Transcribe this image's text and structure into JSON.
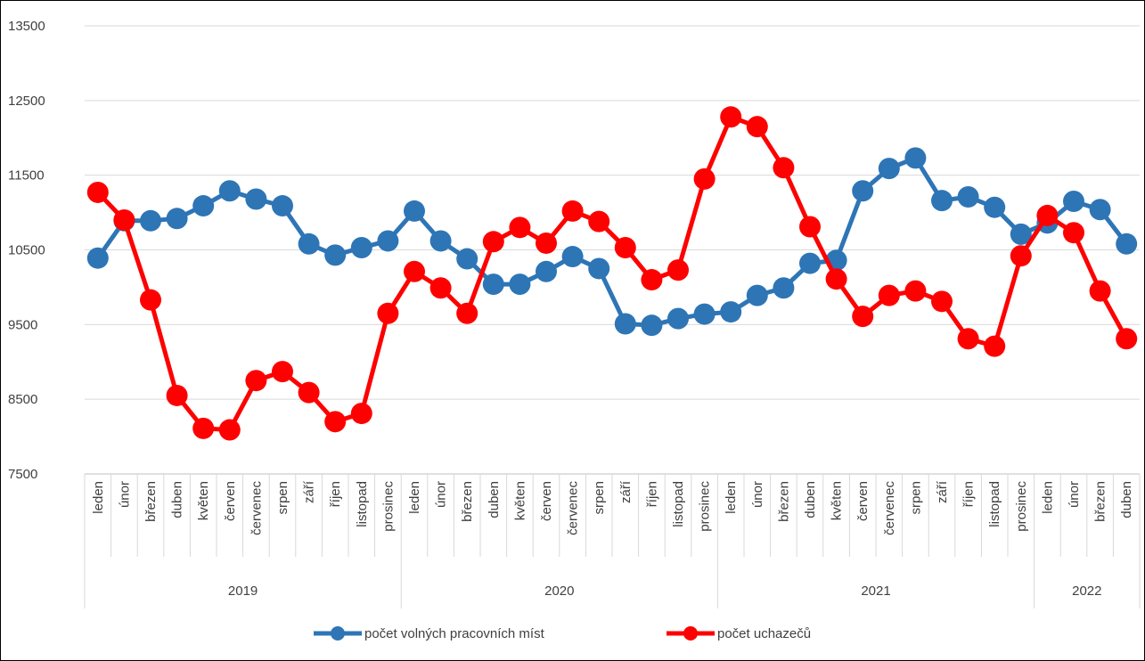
{
  "chart_data": {
    "type": "line",
    "ylim": [
      7500,
      13500
    ],
    "yticks": [
      7500,
      8500,
      9500,
      10500,
      11500,
      12500,
      13500
    ],
    "grid": "horizontal",
    "legend_position": "bottom",
    "categories": [
      "leden",
      "únor",
      "březen",
      "duben",
      "květen",
      "červen",
      "červenec",
      "srpen",
      "září",
      "říjen",
      "listopad",
      "prosinec",
      "leden",
      "únor",
      "březen",
      "duben",
      "květen",
      "červen",
      "červenec",
      "srpen",
      "září",
      "říjen",
      "listopad",
      "prosinec",
      "leden",
      "únor",
      "březen",
      "duben",
      "květen",
      "červen",
      "červenec",
      "srpen",
      "září",
      "říjen",
      "listopad",
      "prosinec",
      "leden",
      "únor",
      "březen",
      "duben"
    ],
    "year_groups": [
      {
        "label": "2019",
        "count": 12
      },
      {
        "label": "2020",
        "count": 12
      },
      {
        "label": "2021",
        "count": 12
      },
      {
        "label": "2022",
        "count": 4
      }
    ],
    "series": [
      {
        "name": "počet volných pracovních míst",
        "color": "#2E75B6",
        "values": [
          10390,
          10890,
          10890,
          10920,
          11090,
          11290,
          11180,
          11090,
          10580,
          10430,
          10530,
          10620,
          11020,
          10620,
          10380,
          10040,
          10040,
          10210,
          10410,
          10250,
          9510,
          9490,
          9580,
          9640,
          9670,
          9890,
          9990,
          10320,
          10360,
          11290,
          11590,
          11730,
          11160,
          11210,
          11070,
          10710,
          10860,
          11150,
          11040,
          10580
        ]
      },
      {
        "name": "počet uchazečů",
        "color": "#FF0000",
        "values": [
          11270,
          10900,
          9830,
          8550,
          8110,
          8090,
          8750,
          8870,
          8590,
          8200,
          8310,
          9650,
          10210,
          9990,
          9650,
          10610,
          10800,
          10590,
          11020,
          10880,
          10530,
          10100,
          10230,
          11450,
          12280,
          12150,
          11600,
          10810,
          10110,
          9610,
          9890,
          9950,
          9810,
          9310,
          9210,
          10420,
          10960,
          10730,
          9950,
          9310
        ]
      }
    ]
  }
}
